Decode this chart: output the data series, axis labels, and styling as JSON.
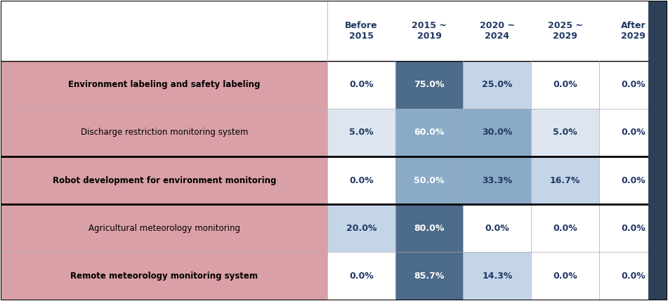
{
  "col_headers": [
    "Before\n2015",
    "2015 ~\n2019",
    "2020 ~\n2024",
    "2025 ~\n2029",
    "After\n2029"
  ],
  "rows": [
    {
      "label": "Environment labeling and safety labeling",
      "values": [
        0.0,
        75.0,
        25.0,
        0.0,
        0.0
      ],
      "bold": true
    },
    {
      "label": "Discharge restriction monitoring system",
      "values": [
        5.0,
        60.0,
        30.0,
        5.0,
        0.0
      ],
      "bold": false
    },
    {
      "label": "Robot development for environment monitoring",
      "values": [
        0.0,
        50.0,
        33.3,
        16.7,
        0.0
      ],
      "bold": true
    },
    {
      "label": "Agricultural meteorology monitoring",
      "values": [
        20.0,
        80.0,
        0.0,
        0.0,
        0.0
      ],
      "bold": false
    },
    {
      "label": "Remote meteorology monitoring system",
      "values": [
        0.0,
        85.7,
        14.3,
        0.0,
        0.0
      ],
      "bold": true
    }
  ],
  "row_bg_color": "#d9a0a8",
  "header_text_color": "#1f3864",
  "cell_text_color": "#1f3864",
  "dark_blue": "#4d6b8a",
  "medium_blue": "#8aaac8",
  "light_blue": "#c5d5e8",
  "very_light": "#dde6f0",
  "white_bg": "#ffffff",
  "thick_after_rows": [
    1,
    2
  ],
  "right_bar_color": "#2e4057"
}
